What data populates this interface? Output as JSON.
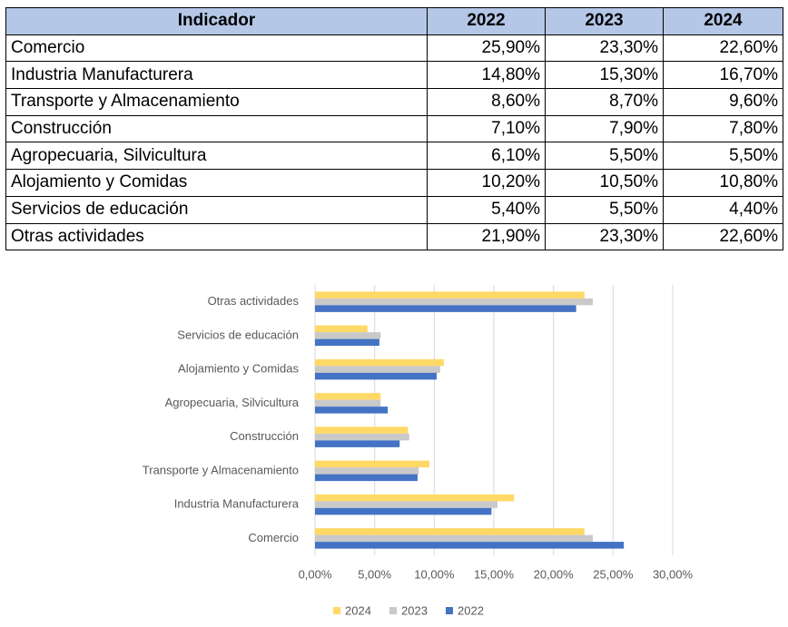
{
  "table": {
    "header": [
      "Indicador",
      "2022",
      "2023",
      "2024"
    ],
    "rows": [
      [
        "Comercio",
        "25,90%",
        "23,30%",
        "22,60%"
      ],
      [
        "Industria Manufacturera",
        "14,80%",
        "15,30%",
        "16,70%"
      ],
      [
        "Transporte y Almacenamiento",
        "8,60%",
        "8,70%",
        "9,60%"
      ],
      [
        "Construcción",
        "7,10%",
        "7,90%",
        "7,80%"
      ],
      [
        "Agropecuaria, Silvicultura",
        "6,10%",
        "5,50%",
        "5,50%"
      ],
      [
        "Alojamiento y Comidas",
        "10,20%",
        "10,50%",
        "10,80%"
      ],
      [
        "Servicios de educación",
        "5,40%",
        "5,50%",
        "4,40%"
      ],
      [
        "Otras actividades",
        "21,90%",
        "23,30%",
        "22,60%"
      ]
    ]
  },
  "chart_data": {
    "type": "hbar",
    "categories": [
      "Comercio",
      "Industria Manufacturera",
      "Transporte y Almacenamiento",
      "Construcción",
      "Agropecuaria, Silvicultura",
      "Alojamiento y Comidas",
      "Servicios de educación",
      "Otras actividades"
    ],
    "series": [
      {
        "name": "2024",
        "color": "#ffd966",
        "values": [
          22.6,
          16.7,
          9.6,
          7.8,
          5.5,
          10.8,
          4.4,
          22.6
        ]
      },
      {
        "name": "2023",
        "color": "#c9c9c9",
        "values": [
          23.3,
          15.3,
          8.7,
          7.9,
          5.5,
          10.5,
          5.5,
          23.3
        ]
      },
      {
        "name": "2022",
        "color": "#4472c4",
        "values": [
          25.9,
          14.8,
          8.6,
          7.1,
          6.1,
          10.2,
          5.4,
          21.9
        ]
      }
    ],
    "xlim": [
      0,
      30
    ],
    "xticks": [
      {
        "value": 0,
        "label": "0,00%"
      },
      {
        "value": 5,
        "label": "5,00%"
      },
      {
        "value": 10,
        "label": "10,00%"
      },
      {
        "value": 15,
        "label": "15,00%"
      },
      {
        "value": 20,
        "label": "20,00%"
      },
      {
        "value": 25,
        "label": "25,00%"
      },
      {
        "value": 30,
        "label": "30,00%"
      }
    ],
    "grid": true
  }
}
